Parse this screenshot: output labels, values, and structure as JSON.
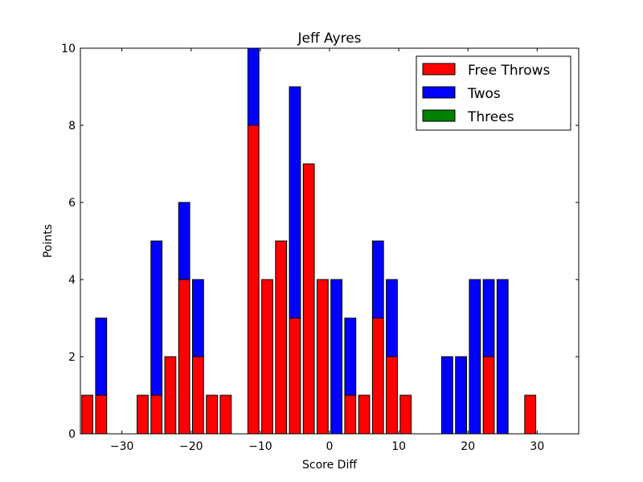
{
  "chart_data": {
    "type": "bar",
    "stacked": true,
    "title": "Jeff Ayres",
    "xlabel": "Score Diff",
    "ylabel": "Points",
    "xlim": [
      -36,
      36
    ],
    "ylim": [
      0,
      10
    ],
    "bar_width": 1.6,
    "x_ticks": [
      -30,
      -20,
      -10,
      0,
      10,
      20,
      30
    ],
    "x_tick_labels": [
      "−30",
      "−20",
      "−10",
      "0",
      "10",
      "20",
      "30"
    ],
    "y_ticks": [
      0,
      2,
      4,
      6,
      8,
      10
    ],
    "y_tick_labels": [
      "0",
      "2",
      "4",
      "6",
      "8",
      "10"
    ],
    "legend_position": "top-right",
    "grid": false,
    "x": [
      -35,
      -33,
      -31,
      -29,
      -27,
      -25,
      -23,
      -21,
      -19,
      -17,
      -15,
      -13,
      -11,
      -9,
      -7,
      -5,
      -3,
      -1,
      1,
      3,
      5,
      7,
      9,
      11,
      13,
      15,
      17,
      19,
      21,
      23,
      25,
      27,
      29,
      31,
      33,
      35
    ],
    "series": [
      {
        "name": "Free Throws",
        "color": "#ff0000",
        "values": [
          1,
          1,
          0,
          0,
          1,
          1,
          2,
          4,
          2,
          1,
          1,
          0,
          8,
          4,
          5,
          3,
          7,
          4,
          0,
          1,
          1,
          3,
          2,
          1,
          0,
          0,
          0,
          0,
          0,
          2,
          0,
          0,
          1,
          0,
          0,
          0
        ]
      },
      {
        "name": "Twos",
        "color": "#0000ff",
        "values": [
          0,
          2,
          0,
          0,
          0,
          4,
          0,
          2,
          2,
          0,
          0,
          0,
          2,
          0,
          0,
          6,
          0,
          0,
          4,
          2,
          0,
          2,
          2,
          0,
          0,
          0,
          2,
          2,
          4,
          2,
          4,
          0,
          0,
          0,
          0,
          0
        ]
      },
      {
        "name": "Threes",
        "color": "#008000",
        "values": [
          0,
          0,
          0,
          0,
          0,
          0,
          0,
          0,
          0,
          0,
          0,
          0,
          0,
          0,
          0,
          0,
          0,
          0,
          0,
          0,
          0,
          0,
          0,
          0,
          0,
          0,
          0,
          0,
          0,
          0,
          0,
          0,
          0,
          0,
          0,
          0
        ]
      }
    ]
  }
}
